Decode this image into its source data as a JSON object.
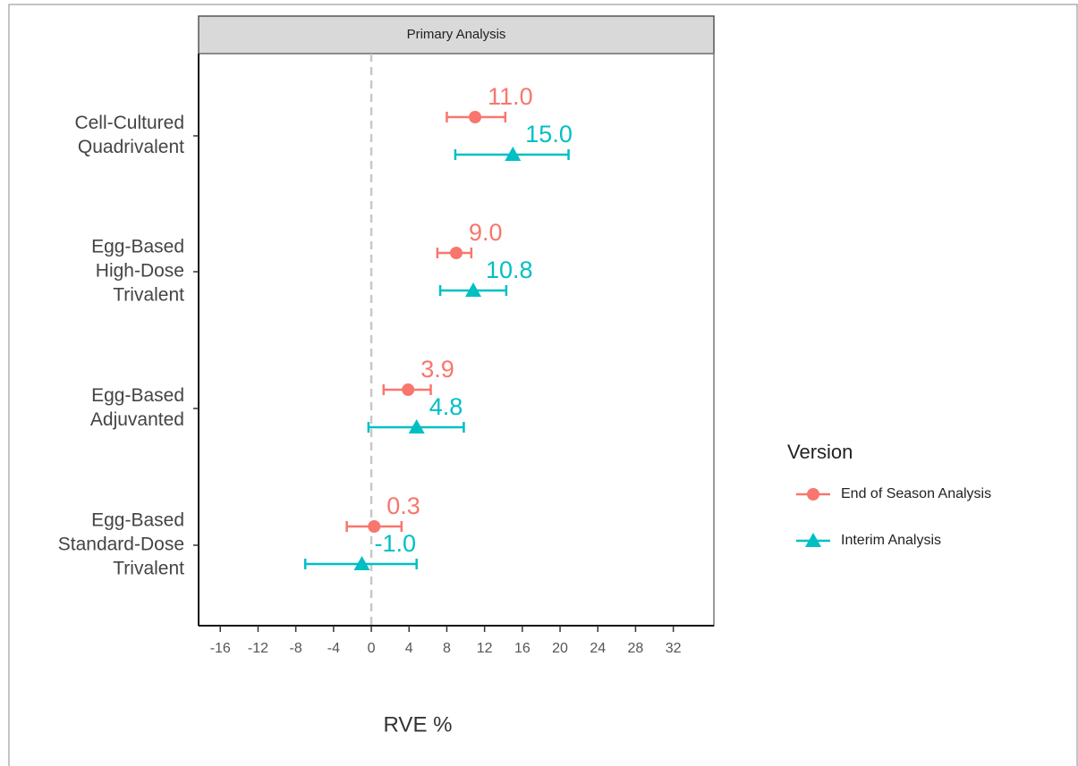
{
  "chart_data": {
    "type": "forest",
    "panel_title": "Primary Analysis",
    "x_label": "RVE %",
    "legend_title": "Version",
    "categories": [
      [
        "Cell-Cultured",
        "Quadrivalent"
      ],
      [
        "Egg-Based",
        "High-Dose",
        "Trivalent"
      ],
      [
        "Egg-Based",
        "Adjuvanted"
      ],
      [
        "Egg-Based",
        "Standard-Dose",
        "Trivalent"
      ]
    ],
    "series": [
      {
        "name": "End of Season Analysis",
        "color": "#f8766d",
        "marker": "circle",
        "values": [
          11.0,
          9.0,
          3.9,
          0.3
        ],
        "value_labels": [
          "11.0",
          "9.0",
          "3.9",
          "0.3"
        ],
        "lower": [
          8.0,
          7.0,
          1.3,
          -2.6
        ],
        "upper": [
          14.2,
          10.6,
          6.3,
          3.2
        ]
      },
      {
        "name": "Interim Analysis",
        "color": "#00bfc4",
        "marker": "triangle",
        "values": [
          15.0,
          10.8,
          4.8,
          -1.0
        ],
        "value_labels": [
          "15.0",
          "10.8",
          "4.8",
          "-1.0"
        ],
        "lower": [
          8.9,
          7.3,
          -0.3,
          -7.0
        ],
        "upper": [
          20.9,
          14.3,
          9.8,
          4.8
        ]
      }
    ],
    "reference_line": 0,
    "xlim": [
      -18.3,
      36.3
    ],
    "xticks": [
      -16,
      -12,
      -8,
      -4,
      0,
      4,
      8,
      12,
      16,
      20,
      24,
      28,
      32
    ]
  }
}
